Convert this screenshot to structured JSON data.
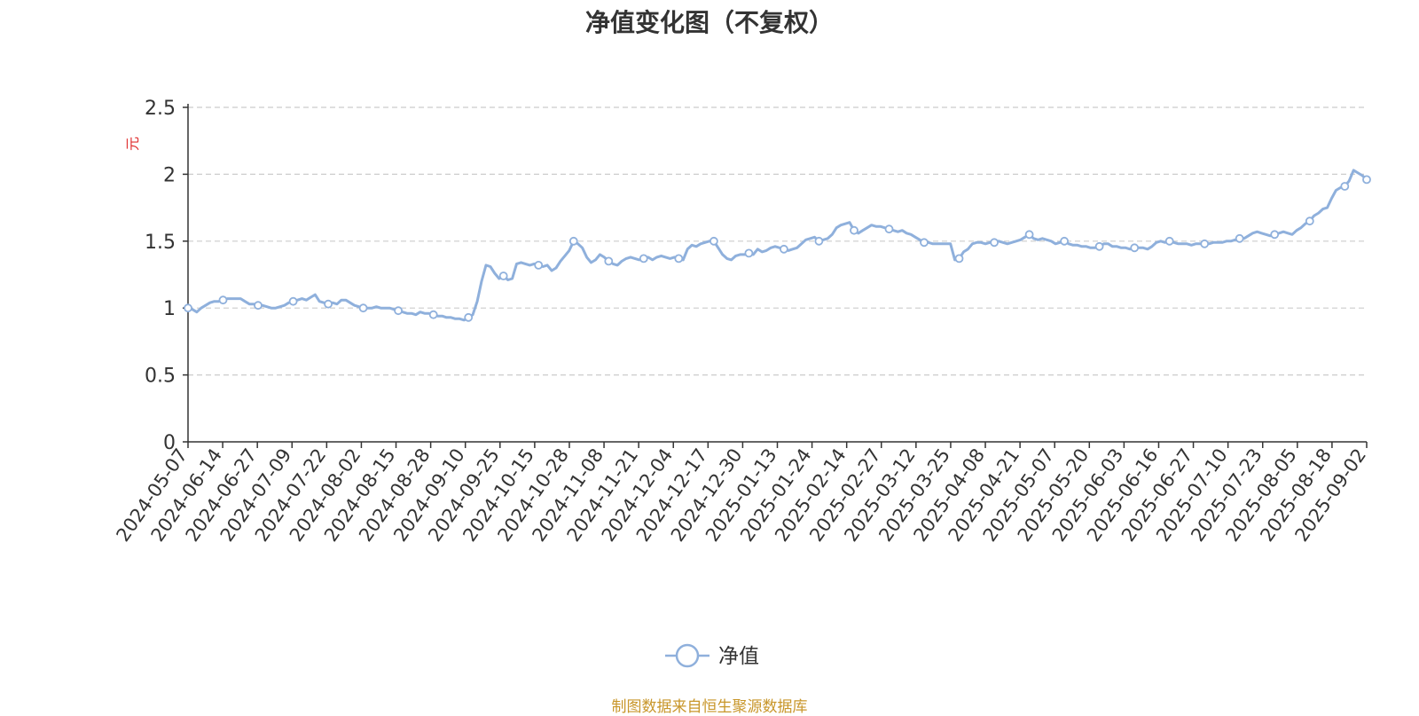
{
  "chart_data": {
    "type": "line",
    "title": "净值变化图（不复权）",
    "ylabel": "元",
    "xlabel": "",
    "ylim": [
      0,
      2.5
    ],
    "y_ticks": [
      "0",
      "0.5",
      "1",
      "1.5",
      "2",
      "2.5"
    ],
    "x_tick_labels": [
      "2024-05-07",
      "2024-06-14",
      "2024-06-27",
      "2024-07-09",
      "2024-07-22",
      "2024-08-02",
      "2024-08-15",
      "2024-08-28",
      "2024-09-10",
      "2024-09-25",
      "2024-10-15",
      "2024-10-28",
      "2024-11-08",
      "2024-11-21",
      "2024-12-04",
      "2024-12-17",
      "2024-12-30",
      "2025-01-13",
      "2025-01-24",
      "2025-02-14",
      "2025-02-27",
      "2025-03-12",
      "2025-03-25",
      "2025-04-08",
      "2025-04-21",
      "2025-05-07",
      "2025-05-20",
      "2025-06-03",
      "2025-06-16",
      "2025-06-27",
      "2025-07-10",
      "2025-07-23",
      "2025-08-05",
      "2025-08-18",
      "2025-09-02"
    ],
    "grid": true,
    "legend": "bottom-center",
    "series": [
      {
        "name": "净值",
        "color": "#8fb0dc",
        "values": [
          1.0,
          0.99,
          0.97,
          1.0,
          1.02,
          1.04,
          1.05,
          1.05,
          1.06,
          1.07,
          1.07,
          1.07,
          1.07,
          1.05,
          1.03,
          1.03,
          1.02,
          1.02,
          1.01,
          1.0,
          1.0,
          1.01,
          1.02,
          1.04,
          1.05,
          1.06,
          1.07,
          1.06,
          1.08,
          1.1,
          1.05,
          1.04,
          1.03,
          1.04,
          1.03,
          1.06,
          1.06,
          1.04,
          1.02,
          1.01,
          1.0,
          1.0,
          1.0,
          1.01,
          1.0,
          1.0,
          1.0,
          0.99,
          0.98,
          0.97,
          0.96,
          0.96,
          0.95,
          0.97,
          0.96,
          0.96,
          0.95,
          0.94,
          0.94,
          0.93,
          0.93,
          0.92,
          0.92,
          0.91,
          0.93,
          0.95,
          1.05,
          1.2,
          1.32,
          1.31,
          1.26,
          1.22,
          1.24,
          1.21,
          1.22,
          1.33,
          1.34,
          1.33,
          1.32,
          1.33,
          1.32,
          1.31,
          1.32,
          1.28,
          1.3,
          1.35,
          1.39,
          1.43,
          1.5,
          1.48,
          1.45,
          1.38,
          1.34,
          1.36,
          1.4,
          1.38,
          1.35,
          1.33,
          1.32,
          1.35,
          1.37,
          1.38,
          1.37,
          1.36,
          1.37,
          1.38,
          1.36,
          1.38,
          1.39,
          1.38,
          1.37,
          1.38,
          1.37,
          1.36,
          1.44,
          1.47,
          1.46,
          1.48,
          1.49,
          1.5,
          1.5,
          1.45,
          1.4,
          1.37,
          1.36,
          1.39,
          1.4,
          1.4,
          1.41,
          1.4,
          1.44,
          1.42,
          1.43,
          1.45,
          1.46,
          1.45,
          1.44,
          1.43,
          1.44,
          1.45,
          1.48,
          1.51,
          1.52,
          1.53,
          1.5,
          1.51,
          1.52,
          1.55,
          1.6,
          1.62,
          1.63,
          1.64,
          1.58,
          1.56,
          1.58,
          1.6,
          1.62,
          1.61,
          1.61,
          1.6,
          1.59,
          1.58,
          1.57,
          1.58,
          1.56,
          1.55,
          1.53,
          1.51,
          1.49,
          1.49,
          1.48,
          1.48,
          1.48,
          1.48,
          1.48,
          1.36,
          1.37,
          1.42,
          1.44,
          1.48,
          1.49,
          1.49,
          1.48,
          1.49,
          1.49,
          1.5,
          1.49,
          1.48,
          1.49,
          1.5,
          1.51,
          1.53,
          1.55,
          1.52,
          1.51,
          1.52,
          1.51,
          1.5,
          1.48,
          1.49,
          1.5,
          1.48,
          1.47,
          1.47,
          1.46,
          1.46,
          1.45,
          1.45,
          1.46,
          1.48,
          1.48,
          1.46,
          1.46,
          1.45,
          1.45,
          1.44,
          1.45,
          1.45,
          1.45,
          1.44,
          1.46,
          1.49,
          1.5,
          1.49,
          1.5,
          1.49,
          1.48,
          1.48,
          1.48,
          1.47,
          1.48,
          1.48,
          1.48,
          1.48,
          1.49,
          1.49,
          1.49,
          1.5,
          1.5,
          1.51,
          1.52,
          1.52,
          1.54,
          1.56,
          1.57,
          1.56,
          1.55,
          1.54,
          1.55,
          1.56,
          1.57,
          1.56,
          1.55,
          1.58,
          1.6,
          1.63,
          1.65,
          1.69,
          1.71,
          1.74,
          1.75,
          1.82,
          1.88,
          1.9,
          1.91,
          1.95,
          2.03,
          2.01,
          1.99,
          1.96
        ]
      }
    ]
  },
  "footer": {
    "source_text": "制图数据来自恒生聚源数据库"
  }
}
